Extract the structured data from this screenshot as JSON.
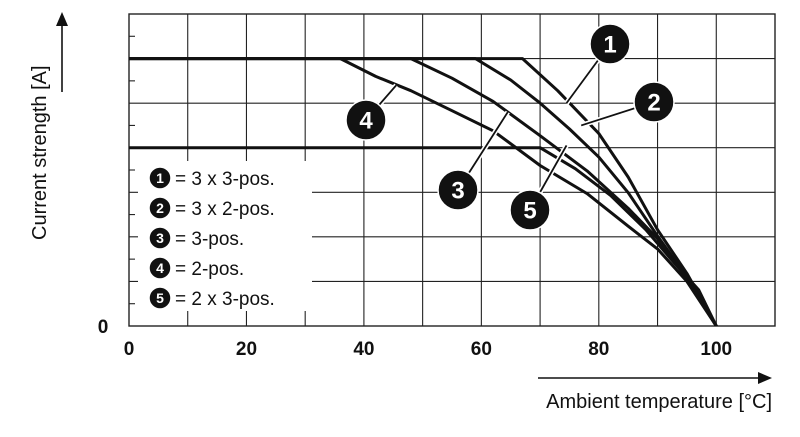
{
  "chart_data": {
    "type": "line",
    "xlabel": "Ambient temperature [°C]",
    "ylabel": "Current strength [A]",
    "xlim": [
      0,
      110
    ],
    "ylim": [
      0,
      7
    ],
    "x_ticks": [
      0,
      20,
      40,
      60,
      80,
      100
    ],
    "y_ticks": [
      0
    ],
    "grid": true,
    "legend_position": "lower-left",
    "series": [
      {
        "id": "1",
        "name": "3 x 3-pos.",
        "points": [
          [
            0,
            6
          ],
          [
            67,
            6
          ],
          [
            73,
            5.28
          ],
          [
            80,
            4.32
          ],
          [
            85,
            3.34
          ],
          [
            90,
            2.16
          ],
          [
            95,
            1.18
          ],
          [
            100,
            0
          ]
        ]
      },
      {
        "id": "2",
        "name": "3 x 2-pos.",
        "points": [
          [
            0,
            6
          ],
          [
            59,
            6
          ],
          [
            65,
            5.52
          ],
          [
            70,
            5.0
          ],
          [
            75,
            4.42
          ],
          [
            80,
            3.79
          ],
          [
            85,
            2.99
          ],
          [
            90,
            2.02
          ],
          [
            95,
            1.1
          ],
          [
            100,
            0
          ]
        ]
      },
      {
        "id": "3",
        "name": "3-pos.",
        "points": [
          [
            0,
            6
          ],
          [
            48,
            6
          ],
          [
            55,
            5.56
          ],
          [
            62,
            5.04
          ],
          [
            70,
            4.27
          ],
          [
            78,
            3.48
          ],
          [
            85,
            2.64
          ],
          [
            90,
            1.96
          ],
          [
            95,
            1.06
          ],
          [
            100,
            0
          ]
        ]
      },
      {
        "id": "4",
        "name": "2-pos.",
        "points": [
          [
            36,
            6
          ],
          [
            42,
            5.6
          ],
          [
            48,
            5.28
          ],
          [
            55,
            4.83
          ],
          [
            62,
            4.38
          ],
          [
            70,
            3.6
          ],
          [
            78,
            2.97
          ],
          [
            85,
            2.24
          ],
          [
            90,
            1.73
          ],
          [
            95,
            1.0
          ],
          [
            100,
            0
          ]
        ]
      },
      {
        "id": "5",
        "name": "2 x 3-pos.",
        "points": [
          [
            0,
            4
          ],
          [
            70,
            4
          ],
          [
            76,
            3.53
          ],
          [
            82,
            2.93
          ],
          [
            88,
            2.16
          ],
          [
            93,
            1.39
          ],
          [
            97,
            0.81
          ],
          [
            100,
            0
          ]
        ]
      }
    ],
    "legend": [
      {
        "id": "1",
        "label": "= 3 x 3-pos."
      },
      {
        "id": "2",
        "label": "= 3 x 2-pos."
      },
      {
        "id": "3",
        "label": "= 3-pos."
      },
      {
        "id": "4",
        "label": "= 2-pos."
      },
      {
        "id": "5",
        "label": "= 2 x 3-pos."
      }
    ],
    "colors": {
      "line": "#111111",
      "grid": "#222222",
      "badge": "#111111",
      "background": "#ffffff"
    }
  }
}
